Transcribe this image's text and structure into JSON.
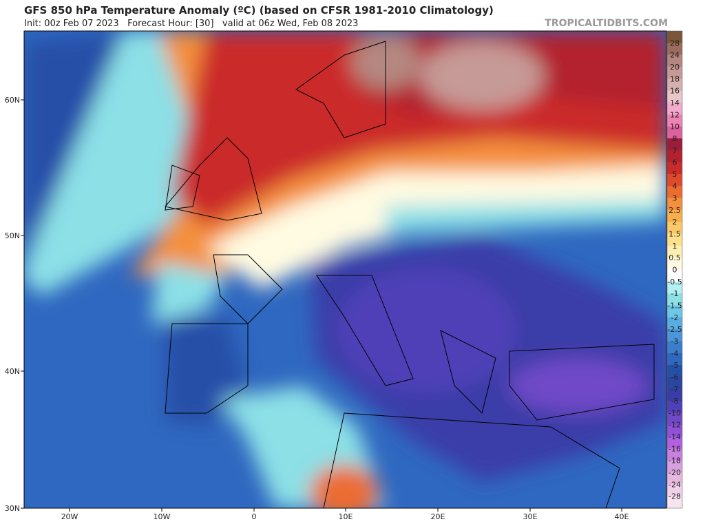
{
  "header": {
    "title": "GFS 850 hPa Temperature Anomaly (ºC) (based on CFSR 1981-2010 Climatology)",
    "subtitle": "Init: 00z Feb 07 2023   Forecast Hour: [30]   valid at 06z Wed, Feb 08 2023",
    "credit": "TROPICALTIDBITS.COM"
  },
  "map": {
    "lat_labels": [
      "60N",
      "50N",
      "40N",
      "30N"
    ],
    "lon_labels": [
      "20W",
      "10W",
      "0",
      "10E",
      "20E",
      "30E",
      "40E"
    ]
  },
  "colorbar": {
    "labels": [
      "28",
      "24",
      "20",
      "18",
      "16",
      "14",
      "12",
      "10",
      "8",
      "7",
      "6",
      "5",
      "4",
      "3",
      "2.5",
      "2",
      "1.5",
      "1",
      "0.5",
      "0",
      "-0.5",
      "-1",
      "-1.5",
      "-2",
      "-2.5",
      "-3",
      "-4",
      "-5",
      "-6",
      "-7",
      "-8",
      "-10",
      "-12",
      "-14",
      "-16",
      "-18",
      "-20",
      "-24",
      "-28"
    ],
    "colors": [
      "#7d5538",
      "#9c6c5c",
      "#b48880",
      "#c69a96",
      "#d6b0b0",
      "#e8c6ca",
      "#f4aacb",
      "#ee84b6",
      "#de62a0",
      "#9c1c3c",
      "#b3202e",
      "#cb2b2a",
      "#de4a2a",
      "#ec6c30",
      "#f4903c",
      "#f8ae4a",
      "#fbc96a",
      "#fddf8c",
      "#fdefb4",
      "#fffbe2",
      "#ffffff",
      "#b4f0f0",
      "#8ce0e6",
      "#6cc8e6",
      "#58aee0",
      "#4a96d8",
      "#3a7fcc",
      "#2f68c0",
      "#2550a8",
      "#2a46a0",
      "#3a3ca8",
      "#5040b8",
      "#7048c8",
      "#9050d8",
      "#b060e0",
      "#c880e0",
      "#d8a0e0",
      "#e6b8e0",
      "#f0d0e8",
      "#f8e4f0"
    ]
  }
}
